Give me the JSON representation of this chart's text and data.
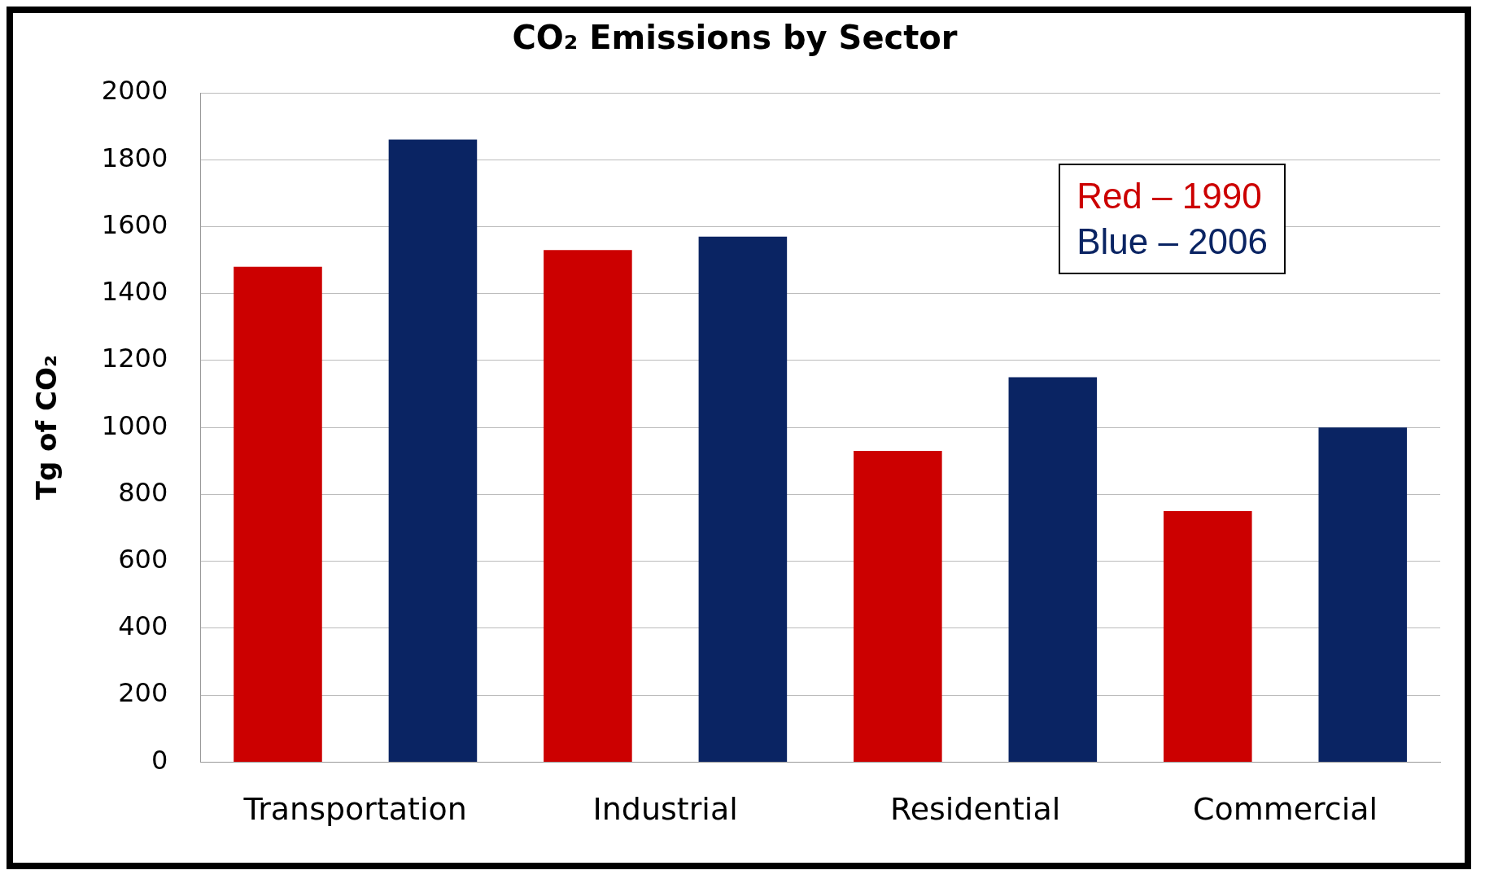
{
  "chart_data": {
    "type": "bar",
    "title": "CO₂ Emissions by Sector",
    "ylabel": "Tg of CO₂",
    "categories": [
      "Transportation",
      "Industrial",
      "Residential",
      "Commercial"
    ],
    "series": [
      {
        "name": "Red – 1990",
        "color": "#cc0000",
        "values": [
          1480,
          1530,
          930,
          750
        ]
      },
      {
        "name": "Blue – 2006",
        "color": "#0a2463",
        "values": [
          1860,
          1570,
          1150,
          1000
        ]
      }
    ],
    "ylim": [
      0,
      2000
    ],
    "yticks": [
      0,
      200,
      400,
      600,
      800,
      1000,
      1200,
      1400,
      1600,
      1800,
      2000
    ],
    "grid": "y",
    "legend": "top right"
  }
}
